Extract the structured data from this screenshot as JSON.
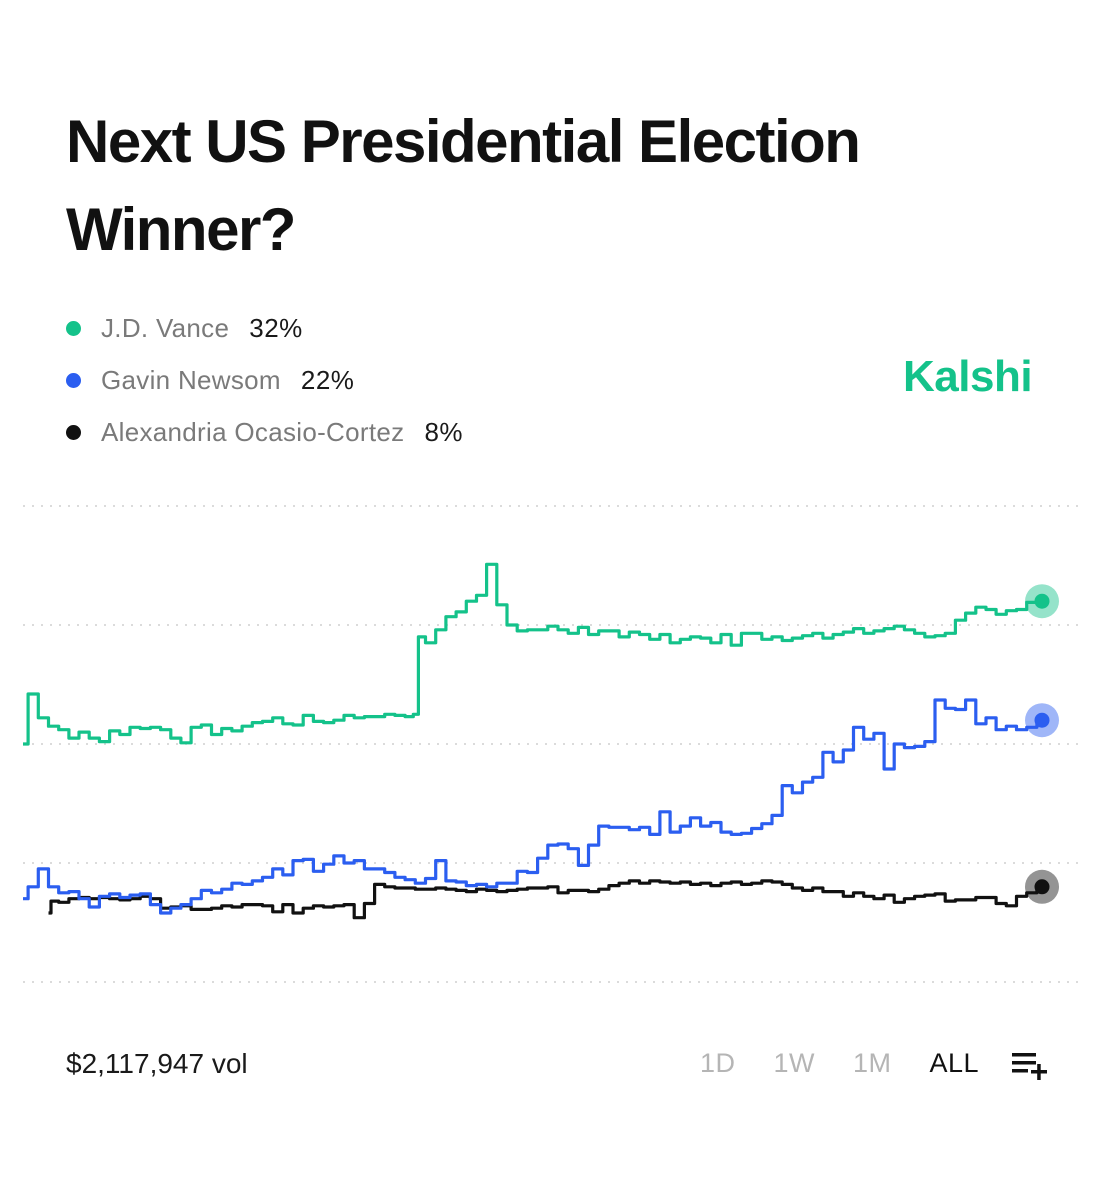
{
  "title": "Next US Presidential Election Winner?",
  "brand": {
    "name": "Kalshi",
    "color": "#14c28a"
  },
  "legend": [
    {
      "name": "J.D. Vance",
      "value": "32%",
      "color": "#14c28a"
    },
    {
      "name": "Gavin Newsom",
      "value": "22%",
      "color": "#2b5ef0"
    },
    {
      "name": "Alexandria Ocasio-Cortez",
      "value": "8%",
      "color": "#111111"
    }
  ],
  "volume": "$2,117,947 vol",
  "ranges": [
    {
      "label": "1D",
      "active": false
    },
    {
      "label": "1W",
      "active": false
    },
    {
      "label": "1M",
      "active": false
    },
    {
      "label": "ALL",
      "active": true
    }
  ],
  "controls": {
    "add_icon": "list-add-icon"
  },
  "chart_data": {
    "type": "line",
    "x_range": [
      0,
      100
    ],
    "ylim": [
      0,
      40
    ],
    "gridlines": [
      0,
      10,
      20,
      30,
      40
    ],
    "grid": true,
    "series": [
      {
        "name": "J.D. Vance",
        "color": "#14c28a",
        "end_value": 32,
        "points": [
          [
            0,
            20
          ],
          [
            1,
            24.2
          ],
          [
            2,
            22.2
          ],
          [
            3,
            21.5
          ],
          [
            4,
            21.2
          ],
          [
            5,
            20.5
          ],
          [
            6,
            21
          ],
          [
            7,
            20.5
          ],
          [
            8,
            20.2
          ],
          [
            9,
            21.1
          ],
          [
            10,
            20.8
          ],
          [
            11,
            21.4
          ],
          [
            12,
            21.3
          ],
          [
            13,
            21.4
          ],
          [
            14,
            21.2
          ],
          [
            15,
            20.5
          ],
          [
            16,
            20.1
          ],
          [
            17,
            21.4
          ],
          [
            18,
            21.6
          ],
          [
            19,
            20.8
          ],
          [
            20,
            21.3
          ],
          [
            21,
            21.1
          ],
          [
            22,
            21.5
          ],
          [
            23,
            21.8
          ],
          [
            24,
            21.9
          ],
          [
            25,
            22.2
          ],
          [
            26,
            21.7
          ],
          [
            27,
            21.6
          ],
          [
            28,
            22.4
          ],
          [
            29,
            21.9
          ],
          [
            30,
            21.8
          ],
          [
            31,
            22
          ],
          [
            32,
            22.4
          ],
          [
            33,
            22.2
          ],
          [
            34,
            22.3
          ],
          [
            35,
            22.3
          ],
          [
            36,
            22.5
          ],
          [
            37,
            22.4
          ],
          [
            38,
            22.3
          ],
          [
            38.6,
            22.5
          ],
          [
            39,
            29
          ],
          [
            40,
            28.5
          ],
          [
            41,
            29.6
          ],
          [
            42,
            30.7
          ],
          [
            43,
            31.1
          ],
          [
            44,
            32
          ],
          [
            45,
            32.5
          ],
          [
            46,
            35.1
          ],
          [
            47,
            31.7
          ],
          [
            48,
            30
          ],
          [
            49,
            29.5
          ],
          [
            50,
            29.6
          ],
          [
            51,
            29.6
          ],
          [
            52,
            29.9
          ],
          [
            53,
            29.6
          ],
          [
            54,
            29.3
          ],
          [
            55,
            29.8
          ],
          [
            56,
            29.2
          ],
          [
            57,
            29.5
          ],
          [
            58,
            29.5
          ],
          [
            59,
            29
          ],
          [
            60,
            29.4
          ],
          [
            61,
            29.2
          ],
          [
            62,
            28.8
          ],
          [
            63,
            29.2
          ],
          [
            64,
            28.5
          ],
          [
            65,
            28.8
          ],
          [
            66,
            29
          ],
          [
            67,
            28.9
          ],
          [
            68,
            28.5
          ],
          [
            69,
            29.2
          ],
          [
            70,
            28.3
          ],
          [
            71,
            29.3
          ],
          [
            72,
            29.3
          ],
          [
            73,
            28.8
          ],
          [
            74,
            29
          ],
          [
            75,
            28.7
          ],
          [
            76,
            28.9
          ],
          [
            77,
            29.1
          ],
          [
            78,
            29.3
          ],
          [
            79,
            28.9
          ],
          [
            80,
            29.2
          ],
          [
            81,
            29.4
          ],
          [
            82,
            29.7
          ],
          [
            83,
            29.3
          ],
          [
            84,
            29.5
          ],
          [
            85,
            29.7
          ],
          [
            86,
            29.9
          ],
          [
            87,
            29.6
          ],
          [
            88,
            29.3
          ],
          [
            89,
            29
          ],
          [
            90,
            29.1
          ],
          [
            91,
            29.3
          ],
          [
            92,
            30.4
          ],
          [
            93,
            31
          ],
          [
            94,
            31.5
          ],
          [
            95,
            31.3
          ],
          [
            96,
            30.9
          ],
          [
            97,
            31.2
          ],
          [
            98,
            31.3
          ],
          [
            99,
            31.9
          ],
          [
            100,
            32
          ]
        ]
      },
      {
        "name": "Gavin Newsom",
        "color": "#2b5ef0",
        "end_value": 22,
        "points": [
          [
            0,
            7
          ],
          [
            1,
            8
          ],
          [
            2,
            9.5
          ],
          [
            3,
            8
          ],
          [
            4,
            7.5
          ],
          [
            5,
            7.6
          ],
          [
            6,
            7
          ],
          [
            7,
            6.3
          ],
          [
            8,
            7.2
          ],
          [
            9,
            7.4
          ],
          [
            10,
            7.1
          ],
          [
            11,
            7.3
          ],
          [
            12,
            7.4
          ],
          [
            13,
            6.5
          ],
          [
            14,
            5.8
          ],
          [
            15,
            6.2
          ],
          [
            16,
            6.5
          ],
          [
            17,
            7
          ],
          [
            18,
            7.7
          ],
          [
            19,
            7.5
          ],
          [
            20,
            7.8
          ],
          [
            21,
            8.3
          ],
          [
            22,
            8.2
          ],
          [
            23,
            8.5
          ],
          [
            24,
            8.8
          ],
          [
            25,
            9.5
          ],
          [
            26,
            9
          ],
          [
            27,
            10.2
          ],
          [
            28,
            10.3
          ],
          [
            29,
            9.3
          ],
          [
            30,
            9.9
          ],
          [
            31,
            10.6
          ],
          [
            32,
            10
          ],
          [
            33,
            10.2
          ],
          [
            34,
            9.5
          ],
          [
            35,
            9.5
          ],
          [
            36,
            9.2
          ],
          [
            37,
            8.8
          ],
          [
            38,
            8.6
          ],
          [
            39,
            8.3
          ],
          [
            40,
            8.7
          ],
          [
            41,
            10.2
          ],
          [
            42,
            8.5
          ],
          [
            43,
            8.4
          ],
          [
            44,
            8.1
          ],
          [
            45,
            8.2
          ],
          [
            46,
            8
          ],
          [
            47,
            8.3
          ],
          [
            48,
            8.3
          ],
          [
            49,
            9.3
          ],
          [
            50,
            9.2
          ],
          [
            51,
            10.4
          ],
          [
            52,
            11.5
          ],
          [
            53,
            11.6
          ],
          [
            54,
            11.2
          ],
          [
            55,
            9.8
          ],
          [
            56,
            11.5
          ],
          [
            57,
            13.1
          ],
          [
            58,
            13
          ],
          [
            59,
            13
          ],
          [
            60,
            12.8
          ],
          [
            61,
            13
          ],
          [
            62,
            12.4
          ],
          [
            63,
            14.3
          ],
          [
            64,
            12.6
          ],
          [
            65,
            13.1
          ],
          [
            66,
            13.8
          ],
          [
            67,
            13.1
          ],
          [
            68,
            13.4
          ],
          [
            69,
            12.6
          ],
          [
            70,
            12.4
          ],
          [
            71,
            12.5
          ],
          [
            72,
            12.9
          ],
          [
            73,
            13.3
          ],
          [
            74,
            14
          ],
          [
            75,
            16.5
          ],
          [
            76,
            15.9
          ],
          [
            77,
            16.8
          ],
          [
            78,
            17.2
          ],
          [
            79,
            19.3
          ],
          [
            80,
            18.5
          ],
          [
            81,
            19.5
          ],
          [
            82,
            21.4
          ],
          [
            83,
            20.4
          ],
          [
            84,
            20.9
          ],
          [
            85,
            17.9
          ],
          [
            86,
            20
          ],
          [
            87,
            19.7
          ],
          [
            88,
            19.8
          ],
          [
            89,
            20.2
          ],
          [
            90,
            23.7
          ],
          [
            91,
            23
          ],
          [
            92,
            22.9
          ],
          [
            93,
            23.7
          ],
          [
            94,
            21.7
          ],
          [
            95,
            22.2
          ],
          [
            96,
            21.2
          ],
          [
            97,
            21.5
          ],
          [
            98,
            21.2
          ],
          [
            99,
            21.4
          ],
          [
            100,
            22
          ]
        ]
      },
      {
        "name": "Alexandria Ocasio-Cortez",
        "color": "#111111",
        "end_value": 8,
        "points": [
          [
            2.5,
            5.8
          ],
          [
            3,
            6.8
          ],
          [
            4,
            6.7
          ],
          [
            5,
            7
          ],
          [
            6,
            7.1
          ],
          [
            7,
            7
          ],
          [
            8,
            7.1
          ],
          [
            9,
            7
          ],
          [
            10,
            6.9
          ],
          [
            11,
            7
          ],
          [
            12,
            7.2
          ],
          [
            13,
            7
          ],
          [
            14,
            6.2
          ],
          [
            15,
            6.3
          ],
          [
            16,
            6.4
          ],
          [
            17,
            6.1
          ],
          [
            18,
            6.1
          ],
          [
            19,
            6.2
          ],
          [
            20,
            6.4
          ],
          [
            21,
            6.3
          ],
          [
            22,
            6.5
          ],
          [
            23,
            6.5
          ],
          [
            24,
            6.4
          ],
          [
            25,
            5.9
          ],
          [
            26,
            6.5
          ],
          [
            27,
            5.8
          ],
          [
            28,
            6.2
          ],
          [
            29,
            6.4
          ],
          [
            30,
            6.3
          ],
          [
            31,
            6.4
          ],
          [
            32,
            6.5
          ],
          [
            33,
            5.4
          ],
          [
            34,
            6.6
          ],
          [
            35,
            8.2
          ],
          [
            36,
            8
          ],
          [
            37,
            7.9
          ],
          [
            38,
            7.9
          ],
          [
            39,
            7.8
          ],
          [
            40,
            7.8
          ],
          [
            41,
            7.9
          ],
          [
            42,
            7.8
          ],
          [
            43,
            7.7
          ],
          [
            44,
            7.6
          ],
          [
            45,
            7.8
          ],
          [
            46,
            7.7
          ],
          [
            47,
            7.6
          ],
          [
            48,
            7.7
          ],
          [
            49,
            7.8
          ],
          [
            50,
            7.9
          ],
          [
            51,
            7.9
          ],
          [
            52,
            8
          ],
          [
            53,
            7.5
          ],
          [
            54,
            7.7
          ],
          [
            55,
            7.7
          ],
          [
            56,
            7.6
          ],
          [
            57,
            7.8
          ],
          [
            58,
            8.1
          ],
          [
            59,
            8.3
          ],
          [
            60,
            8.5
          ],
          [
            61,
            8.3
          ],
          [
            62,
            8.5
          ],
          [
            63,
            8.4
          ],
          [
            64,
            8.3
          ],
          [
            65,
            8.4
          ],
          [
            66,
            8.2
          ],
          [
            67,
            8.3
          ],
          [
            68,
            8.1
          ],
          [
            69,
            8.3
          ],
          [
            70,
            8.4
          ],
          [
            71,
            8.2
          ],
          [
            72,
            8.3
          ],
          [
            73,
            8.5
          ],
          [
            74,
            8.4
          ],
          [
            75,
            8.2
          ],
          [
            76,
            7.9
          ],
          [
            77,
            7.7
          ],
          [
            78,
            7.9
          ],
          [
            79,
            7.6
          ],
          [
            80,
            7.6
          ],
          [
            81,
            7.2
          ],
          [
            82,
            7.5
          ],
          [
            83,
            7.2
          ],
          [
            84,
            7
          ],
          [
            85,
            7.3
          ],
          [
            86,
            6.7
          ],
          [
            87,
            7
          ],
          [
            88,
            7.2
          ],
          [
            89,
            7.3
          ],
          [
            90,
            7.4
          ],
          [
            91,
            6.8
          ],
          [
            92,
            6.9
          ],
          [
            93,
            6.9
          ],
          [
            94,
            7.1
          ],
          [
            95,
            7.1
          ],
          [
            96,
            6.6
          ],
          [
            97,
            6.4
          ],
          [
            98,
            7.2
          ],
          [
            99,
            7.5
          ],
          [
            100,
            8
          ]
        ]
      }
    ]
  }
}
